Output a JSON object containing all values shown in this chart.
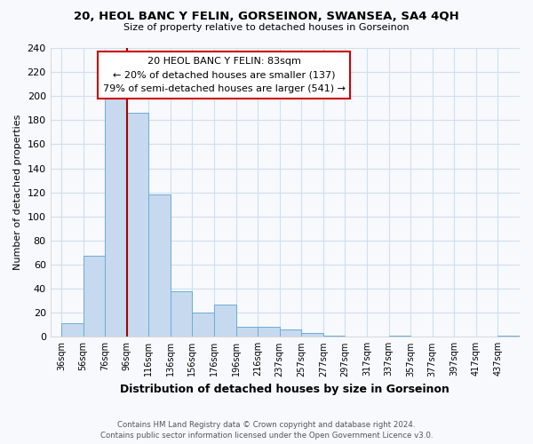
{
  "title": "20, HEOL BANC Y FELIN, GORSEINON, SWANSEA, SA4 4QH",
  "subtitle": "Size of property relative to detached houses in Gorseinon",
  "xlabel": "Distribution of detached houses by size in Gorseinon",
  "ylabel": "Number of detached properties",
  "bar_color": "#c6d9ef",
  "bar_edge_color": "#6baed6",
  "bin_labels": [
    "36sqm",
    "56sqm",
    "76sqm",
    "96sqm",
    "116sqm",
    "136sqm",
    "156sqm",
    "176sqm",
    "196sqm",
    "216sqm",
    "237sqm",
    "257sqm",
    "277sqm",
    "297sqm",
    "317sqm",
    "337sqm",
    "357sqm",
    "377sqm",
    "397sqm",
    "417sqm",
    "437sqm"
  ],
  "bar_heights": [
    11,
    67,
    200,
    186,
    118,
    38,
    20,
    27,
    8,
    8,
    6,
    3,
    1,
    0,
    0,
    1,
    0,
    0,
    0,
    0,
    1
  ],
  "ylim": [
    0,
    240
  ],
  "yticks": [
    0,
    20,
    40,
    60,
    80,
    100,
    120,
    140,
    160,
    180,
    200,
    220,
    240
  ],
  "vline_x_index": 3,
  "vline_color": "#aa0000",
  "annotation_title": "20 HEOL BANC Y FELIN: 83sqm",
  "annotation_line1": "← 20% of detached houses are smaller (137)",
  "annotation_line2": "79% of semi-detached houses are larger (541) →",
  "annotation_box_color": "#ffffff",
  "annotation_box_edge": "#cc0000",
  "footer_line1": "Contains HM Land Registry data © Crown copyright and database right 2024.",
  "footer_line2": "Contains public sector information licensed under the Open Government Licence v3.0.",
  "background_color": "#f7f9fc",
  "grid_color": "#d0dff0"
}
